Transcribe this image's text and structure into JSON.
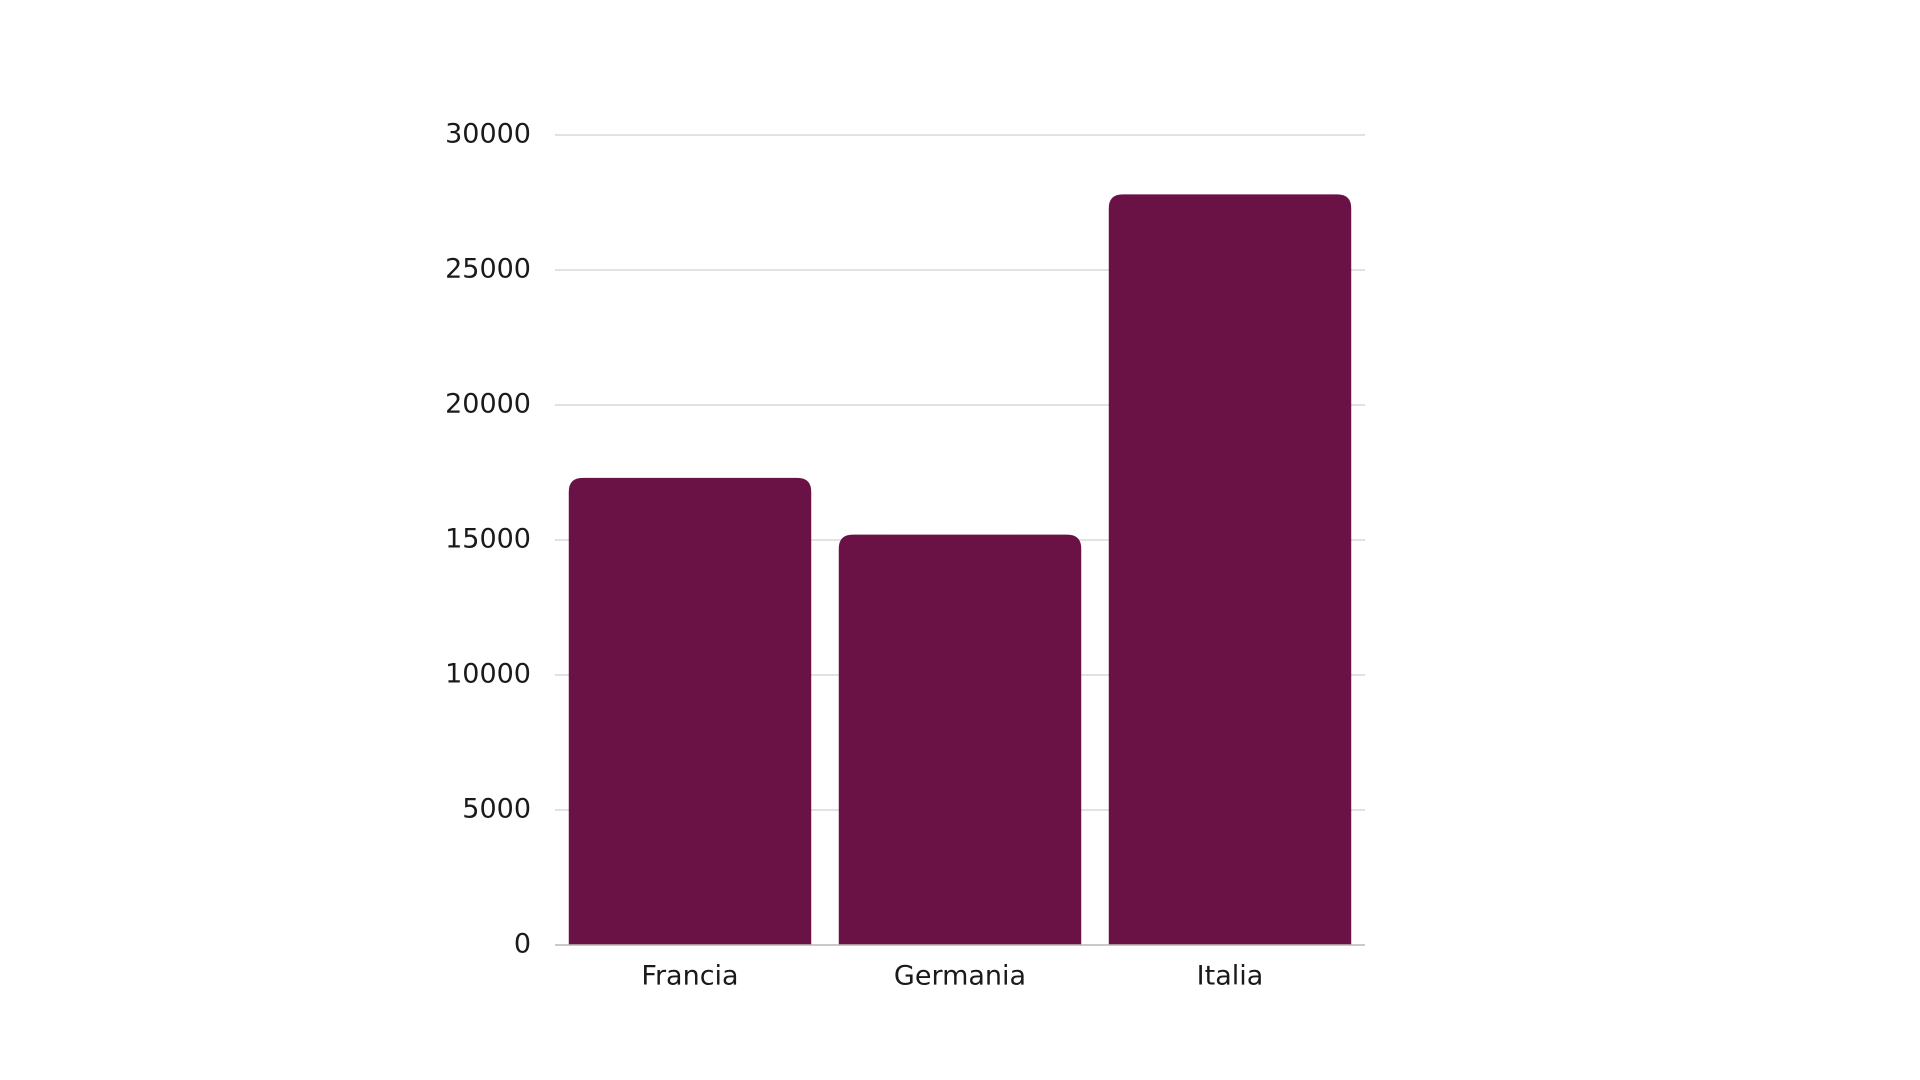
{
  "chart_data": {
    "type": "bar",
    "categories": [
      "Francia",
      "Germania",
      "Italia"
    ],
    "values": [
      17300,
      15200,
      27800
    ],
    "color": "#6a1145",
    "ylim": [
      0,
      30000
    ],
    "yticks": [
      0,
      5000,
      10000,
      15000,
      20000,
      25000,
      30000
    ],
    "grid": true
  }
}
